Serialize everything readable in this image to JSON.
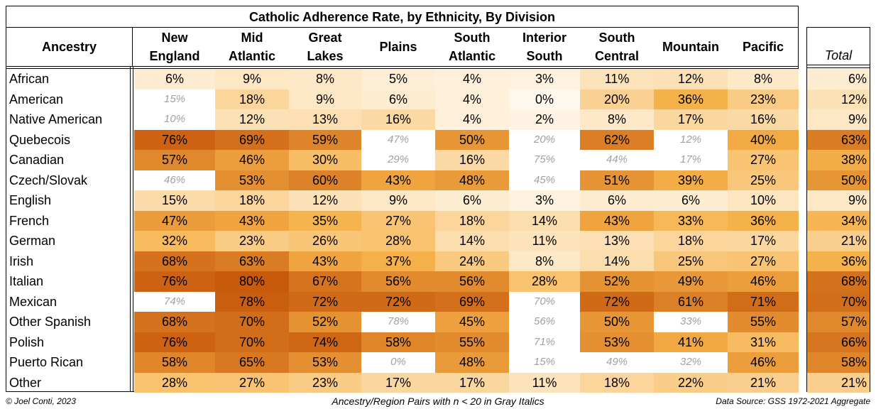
{
  "chart_data": {
    "type": "heatmap",
    "title": "Catholic Adherence Rate, by Ethnicity, By Division",
    "row_header": "Ancestry",
    "total_header": "Total",
    "columns": [
      [
        "New",
        "England"
      ],
      [
        "Mid",
        "Atlantic"
      ],
      [
        "Great",
        "Lakes"
      ],
      [
        "Plains"
      ],
      [
        "South",
        "Atlantic"
      ],
      [
        "Interior",
        "South"
      ],
      [
        "South",
        "Central"
      ],
      [
        "Mountain"
      ],
      [
        "Pacific"
      ]
    ],
    "rows": [
      {
        "name": "African",
        "values": [
          6,
          9,
          8,
          5,
          4,
          3,
          11,
          12,
          8
        ],
        "low_n": [
          false,
          false,
          false,
          false,
          false,
          false,
          false,
          false,
          false
        ],
        "total": 6
      },
      {
        "name": "American",
        "values": [
          15,
          18,
          9,
          6,
          4,
          0,
          20,
          36,
          23
        ],
        "low_n": [
          true,
          false,
          false,
          false,
          false,
          false,
          false,
          false,
          false
        ],
        "total": 12
      },
      {
        "name": "Native American",
        "values": [
          10,
          12,
          13,
          16,
          4,
          2,
          8,
          17,
          16
        ],
        "low_n": [
          true,
          false,
          false,
          false,
          false,
          false,
          false,
          false,
          false
        ],
        "total": 9
      },
      {
        "name": "Quebecois",
        "values": [
          76,
          69,
          59,
          47,
          50,
          20,
          62,
          12,
          40
        ],
        "low_n": [
          false,
          false,
          false,
          true,
          false,
          true,
          false,
          true,
          false
        ],
        "total": 63
      },
      {
        "name": "Canadian",
        "values": [
          57,
          46,
          30,
          29,
          16,
          75,
          44,
          17,
          27
        ],
        "low_n": [
          false,
          false,
          false,
          true,
          false,
          true,
          true,
          true,
          false
        ],
        "total": 38
      },
      {
        "name": "Czech/Slovak",
        "values": [
          46,
          53,
          60,
          43,
          48,
          45,
          51,
          39,
          25
        ],
        "low_n": [
          true,
          false,
          false,
          false,
          false,
          true,
          false,
          false,
          false
        ],
        "total": 50
      },
      {
        "name": "English",
        "values": [
          15,
          18,
          12,
          9,
          6,
          3,
          6,
          6,
          10
        ],
        "low_n": [
          false,
          false,
          false,
          false,
          false,
          false,
          false,
          false,
          false
        ],
        "total": 9
      },
      {
        "name": "French",
        "values": [
          47,
          43,
          35,
          27,
          18,
          14,
          43,
          33,
          36
        ],
        "low_n": [
          false,
          false,
          false,
          false,
          false,
          false,
          false,
          false,
          false
        ],
        "total": 34
      },
      {
        "name": "German",
        "values": [
          32,
          23,
          26,
          28,
          14,
          11,
          13,
          18,
          17
        ],
        "low_n": [
          false,
          false,
          false,
          false,
          false,
          false,
          false,
          false,
          false
        ],
        "total": 21
      },
      {
        "name": "Irish",
        "values": [
          68,
          63,
          43,
          37,
          24,
          8,
          14,
          25,
          27
        ],
        "low_n": [
          false,
          false,
          false,
          false,
          false,
          false,
          false,
          false,
          false
        ],
        "total": 36
      },
      {
        "name": "Italian",
        "values": [
          76,
          80,
          67,
          56,
          56,
          28,
          52,
          49,
          46
        ],
        "low_n": [
          false,
          false,
          false,
          false,
          false,
          false,
          false,
          false,
          false
        ],
        "total": 68
      },
      {
        "name": "Mexican",
        "values": [
          74,
          78,
          72,
          72,
          69,
          70,
          72,
          61,
          71
        ],
        "low_n": [
          true,
          false,
          false,
          false,
          false,
          true,
          false,
          false,
          false
        ],
        "total": 70
      },
      {
        "name": "Other Spanish",
        "values": [
          68,
          70,
          52,
          78,
          45,
          56,
          50,
          33,
          55
        ],
        "low_n": [
          false,
          false,
          false,
          true,
          false,
          true,
          false,
          true,
          false
        ],
        "total": 57
      },
      {
        "name": "Polish",
        "values": [
          76,
          70,
          74,
          58,
          55,
          71,
          53,
          41,
          31
        ],
        "low_n": [
          false,
          false,
          false,
          false,
          false,
          true,
          false,
          false,
          false
        ],
        "total": 66
      },
      {
        "name": "Puerto Rican",
        "values": [
          58,
          65,
          53,
          0,
          48,
          15,
          49,
          32,
          46
        ],
        "low_n": [
          false,
          false,
          false,
          true,
          false,
          true,
          true,
          true,
          false
        ],
        "total": 58
      },
      {
        "name": "Other",
        "values": [
          28,
          27,
          23,
          17,
          17,
          11,
          18,
          22,
          21
        ],
        "low_n": [
          false,
          false,
          false,
          false,
          false,
          false,
          false,
          false,
          false
        ],
        "total": 21
      }
    ],
    "value_suffix": "%",
    "color_scale": {
      "low": "#fff8ec",
      "mid": "#f6b24a",
      "high": "#c85a0c"
    }
  },
  "footer": {
    "credit": "© Joel Conti, 2023",
    "note": "Ancestry/Region Pairs with n < 20 in Gray Italics",
    "source": "Data Source: GSS 1972-2021 Aggregate"
  }
}
